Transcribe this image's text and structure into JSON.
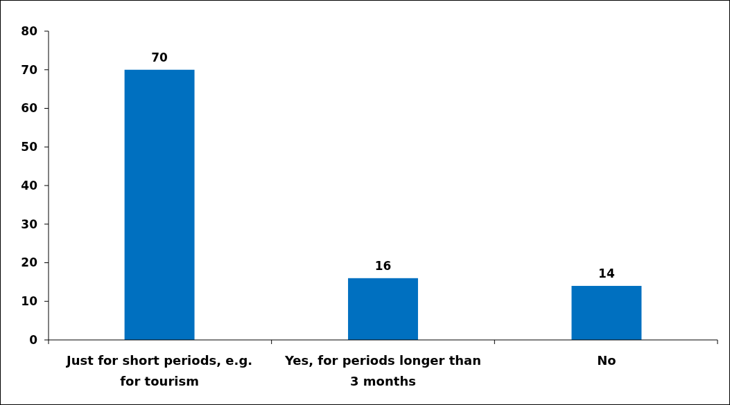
{
  "chart_data": {
    "type": "bar",
    "categories": [
      "Just for short periods, e.g. for tourism",
      "Yes, for periods longer than 3 months",
      "No"
    ],
    "values": [
      70,
      16,
      14
    ],
    "color": "#0070c0",
    "ylim": [
      0,
      80
    ],
    "yticks": [
      0,
      10,
      20,
      30,
      40,
      50,
      60,
      70,
      80
    ],
    "grid": false,
    "data_labels": true
  }
}
